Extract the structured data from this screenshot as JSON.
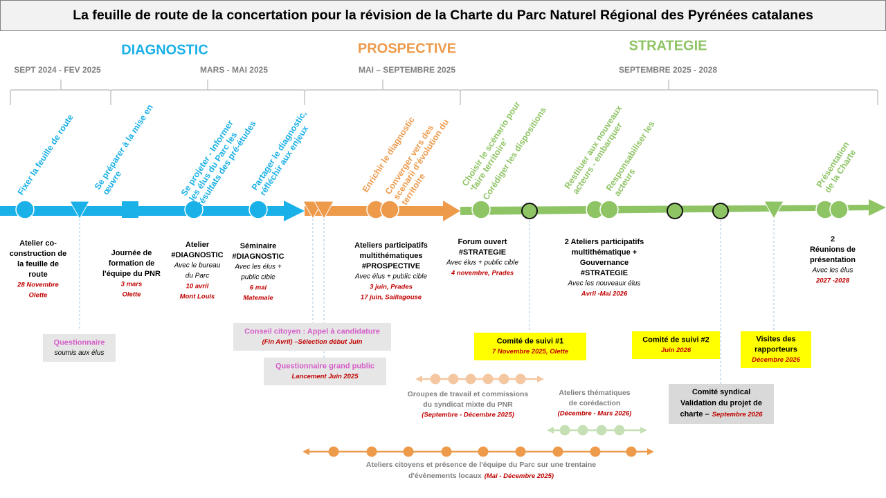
{
  "title": "La feuille de route de la concertation pour la révision de la Charte du Parc Naturel Régional des Pyrénées catalanes",
  "phases": [
    "DIAGNOSTIC",
    "PROSPECTIVE",
    "STRATEGIE"
  ],
  "periods": [
    "SEPT 2024 - FEV 2025",
    "MARS - MAI 2025",
    "MAI – SEPTEMBRE 2025",
    "SEPTEMBRE 2025 - 2028"
  ],
  "steps": [
    [
      "Fixer la feuille de route"
    ],
    [
      "Se préparer à la mise en",
      "œuvre"
    ],
    [
      "Se projeter - Informer",
      "les élus du Parc les",
      "résultats des pré-études"
    ],
    [
      "Partager le diagnostic,",
      "réfléchir aux enjeux"
    ],
    [
      "Enrichir le diagnostic"
    ],
    [
      "Converger vers des",
      "scenarii d'évolution du",
      "territoire"
    ],
    [
      "Choisir le scénario pour",
      "‘faire territoire’"
    ],
    [
      "Corédiger les dispositions"
    ],
    [
      "Restituer aux nouveaux",
      "acteurs - embarquer"
    ],
    [
      "Responsabiliser les",
      "acteurs"
    ],
    [
      "Présentation",
      "de la Charte"
    ]
  ],
  "events": [
    {
      "title": [
        "Atelier co-",
        "construction de",
        "la feuille de",
        "route"
      ],
      "date": [
        "28 Novembre",
        "Olette"
      ]
    },
    {
      "title": [
        "Journée de",
        "formation de",
        "l'équipe du PNR"
      ],
      "date": [
        "3 mars",
        "Olette"
      ]
    },
    {
      "title": [
        "Atelier",
        "#DIAGNOSTIC"
      ],
      "note": [
        "Avec le bureau",
        "du Parc"
      ],
      "date": [
        "10 avril",
        "Mont Louis"
      ]
    },
    {
      "title": [
        "Séminaire",
        "#DIAGNOSTIC"
      ],
      "note": [
        "Avec les élus +",
        "public cible"
      ],
      "date": [
        "6 mai",
        "Matemale"
      ]
    },
    {
      "title": [
        "Ateliers participatifs",
        "multithématiques",
        "#PROSPECTIVE"
      ],
      "note": [
        "Avec élus + public cible"
      ],
      "date": [
        "3 juin, Prades",
        "17 juin, Saillagouse"
      ]
    },
    {
      "title": [
        "Forum ouvert",
        "#STRATEGIE"
      ],
      "note": [
        "Avec élus + public cible"
      ],
      "date": [
        "4 novembre, Prades"
      ]
    },
    {
      "title": [
        "2 Ateliers participatifs",
        "multithématique +",
        "Gouvernance",
        "#STRATEGIE"
      ],
      "note": [
        "Avec les nouveaux élus"
      ],
      "date": [
        "Avril  -Mai 2026"
      ]
    },
    {
      "title": [
        "2",
        "Réunions de",
        "présentation"
      ],
      "note": [
        "Avec les élus"
      ],
      "date": [
        "2027 -2028"
      ]
    }
  ],
  "boxes": [
    {
      "title": [
        "Questionnaire"
      ],
      "note": [
        "soumis aux élus"
      ]
    },
    {
      "title": [
        "Conseil citoyen : Appel à candidature"
      ],
      "date": [
        "(Fin Avril) –Sélection début Juin"
      ]
    },
    {
      "title": [
        "Questionnaire grand public"
      ],
      "date": [
        "Lancement Juin 2025"
      ]
    },
    {
      "title": [
        "Comité de suivi #1"
      ],
      "date": [
        "7 Novembre 2025, Olette"
      ]
    },
    {
      "title": [
        "Comité de suivi #2"
      ],
      "date": [
        "Juin 2026"
      ]
    },
    {
      "title": [
        "Visites des",
        "rapporteurs"
      ],
      "date": [
        "Décembre 2026"
      ]
    },
    {
      "title": [
        "Comité syndical",
        "Validation du projet de",
        "charte –"
      ],
      "date": [
        "Septembre 2026"
      ]
    }
  ],
  "groups": [
    {
      "title": [
        "Groupes de travail et commissions",
        "du syndicat mixte du PNR"
      ],
      "date": [
        "(Septembre - Décembre 2025)"
      ]
    },
    {
      "title": [
        "Ateliers thématiques",
        "de corédaction"
      ],
      "date": [
        "(Décembre - Mars 2026)"
      ]
    },
    {
      "title": [
        "Ateliers citoyens et présence de l'équipe du Parc sur une trentaine",
        "d'évènements locaux"
      ],
      "date": [
        "(Mai - Décembre 2025)"
      ]
    }
  ]
}
